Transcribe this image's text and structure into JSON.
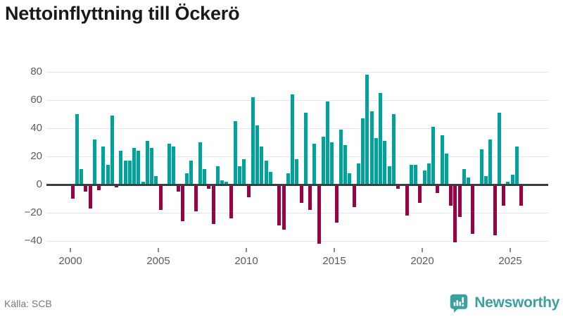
{
  "title": "Nettoinflyttning till Öckerö",
  "source_note": "Källa: SCB",
  "brand": {
    "name": "Newsworthy",
    "logo": "newsworthy-speech-bubble-bar-chart-icon"
  },
  "colors": {
    "bar_positive": "#00a39b",
    "bar_negative": "#9b0143",
    "gridline": "#e4e4e4",
    "zero_line": "#3d3d3d",
    "axis_text": "#5a5a5a",
    "title_text": "#1a1a1a",
    "source_text": "#777777",
    "brand_teal": "#3aa1a2"
  },
  "chart_data": {
    "type": "bar",
    "title": "Nettoinflyttning till Öckerö",
    "xlabel": "",
    "ylabel": "",
    "frequency": "quarterly",
    "start_period": "2000 Q1",
    "end_period": "2025 Q3",
    "x_tick_years": [
      2000,
      2005,
      2010,
      2015,
      2020,
      2025
    ],
    "x_tick_labels": [
      "2000",
      "2005",
      "2010",
      "2015",
      "2020",
      "2025"
    ],
    "y_tick_values": [
      80,
      60,
      40,
      20,
      0,
      -20,
      -40
    ],
    "y_tick_labels": [
      "80",
      "60",
      "40",
      "20",
      "0",
      "−20",
      "−40"
    ],
    "ylim": [
      -45,
      85
    ],
    "grid": "horizontal",
    "legend": "none",
    "series": [
      {
        "name": "Nettoinflyttning",
        "values": [
          -10,
          50,
          11,
          -5,
          -17,
          32,
          -4,
          27,
          14,
          49,
          -2,
          24,
          17,
          17,
          26,
          24,
          2,
          31,
          26,
          6,
          -18,
          0,
          29,
          27,
          -5,
          -26,
          8,
          17,
          -19,
          30,
          11,
          -3,
          -28,
          13,
          3,
          2,
          -24,
          45,
          13,
          18,
          -9,
          62,
          42,
          27,
          17,
          9,
          0,
          -29,
          -32,
          8,
          64,
          18,
          -13,
          51,
          -18,
          29,
          -42,
          34,
          59,
          30,
          -27,
          39,
          28,
          8,
          -16,
          15,
          47,
          78,
          52,
          33,
          65,
          31,
          13,
          50,
          -3,
          0,
          -22,
          14,
          14,
          -13,
          10,
          15,
          41,
          -6,
          35,
          22,
          -15,
          -41,
          -23,
          11,
          5,
          -35,
          0,
          25,
          6,
          32,
          -36,
          51,
          -15,
          2,
          7,
          27,
          -15
        ]
      }
    ]
  }
}
